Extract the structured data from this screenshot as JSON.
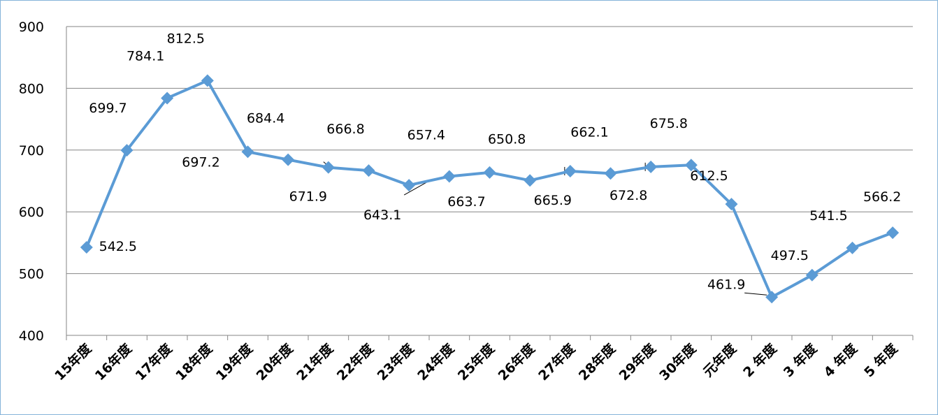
{
  "chart_data": {
    "type": "line",
    "title": "",
    "xlabel": "",
    "ylabel": "",
    "ylim": [
      400,
      900
    ],
    "yticks": [
      "400",
      "500",
      "600",
      "700",
      "800",
      "900"
    ],
    "grid": true,
    "categories": [
      "15年度",
      "16年度",
      "17年度",
      "18年度",
      "19年度",
      "20年度",
      "21年度",
      "22年度",
      "23年度",
      "24年度",
      "25年度",
      "26年度",
      "27年度",
      "28年度",
      "29年度",
      "30年度",
      "元年度",
      "2 年度",
      "3 年度",
      "4 年度",
      "5 年度"
    ],
    "series": [
      {
        "color": "#5b9bd5",
        "marker": "diamond",
        "values": [
          542.5,
          699.7,
          784.1,
          812.5,
          697.2,
          684.4,
          671.9,
          666.8,
          643.1,
          657.4,
          663.7,
          650.8,
          665.9,
          662.1,
          672.8,
          675.8,
          612.5,
          461.9,
          497.5,
          541.5,
          566.2
        ],
        "labels": [
          "542.5",
          "699.7",
          "784.1",
          "812.5",
          "697.2",
          "684.4",
          "671.9",
          "666.8",
          "643.1",
          "657.4",
          "663.7",
          "650.8",
          "665.9",
          "662.1",
          "672.8",
          "675.8",
          "612.5",
          "461.9",
          "497.5",
          "541.5",
          "566.2"
        ]
      }
    ]
  }
}
